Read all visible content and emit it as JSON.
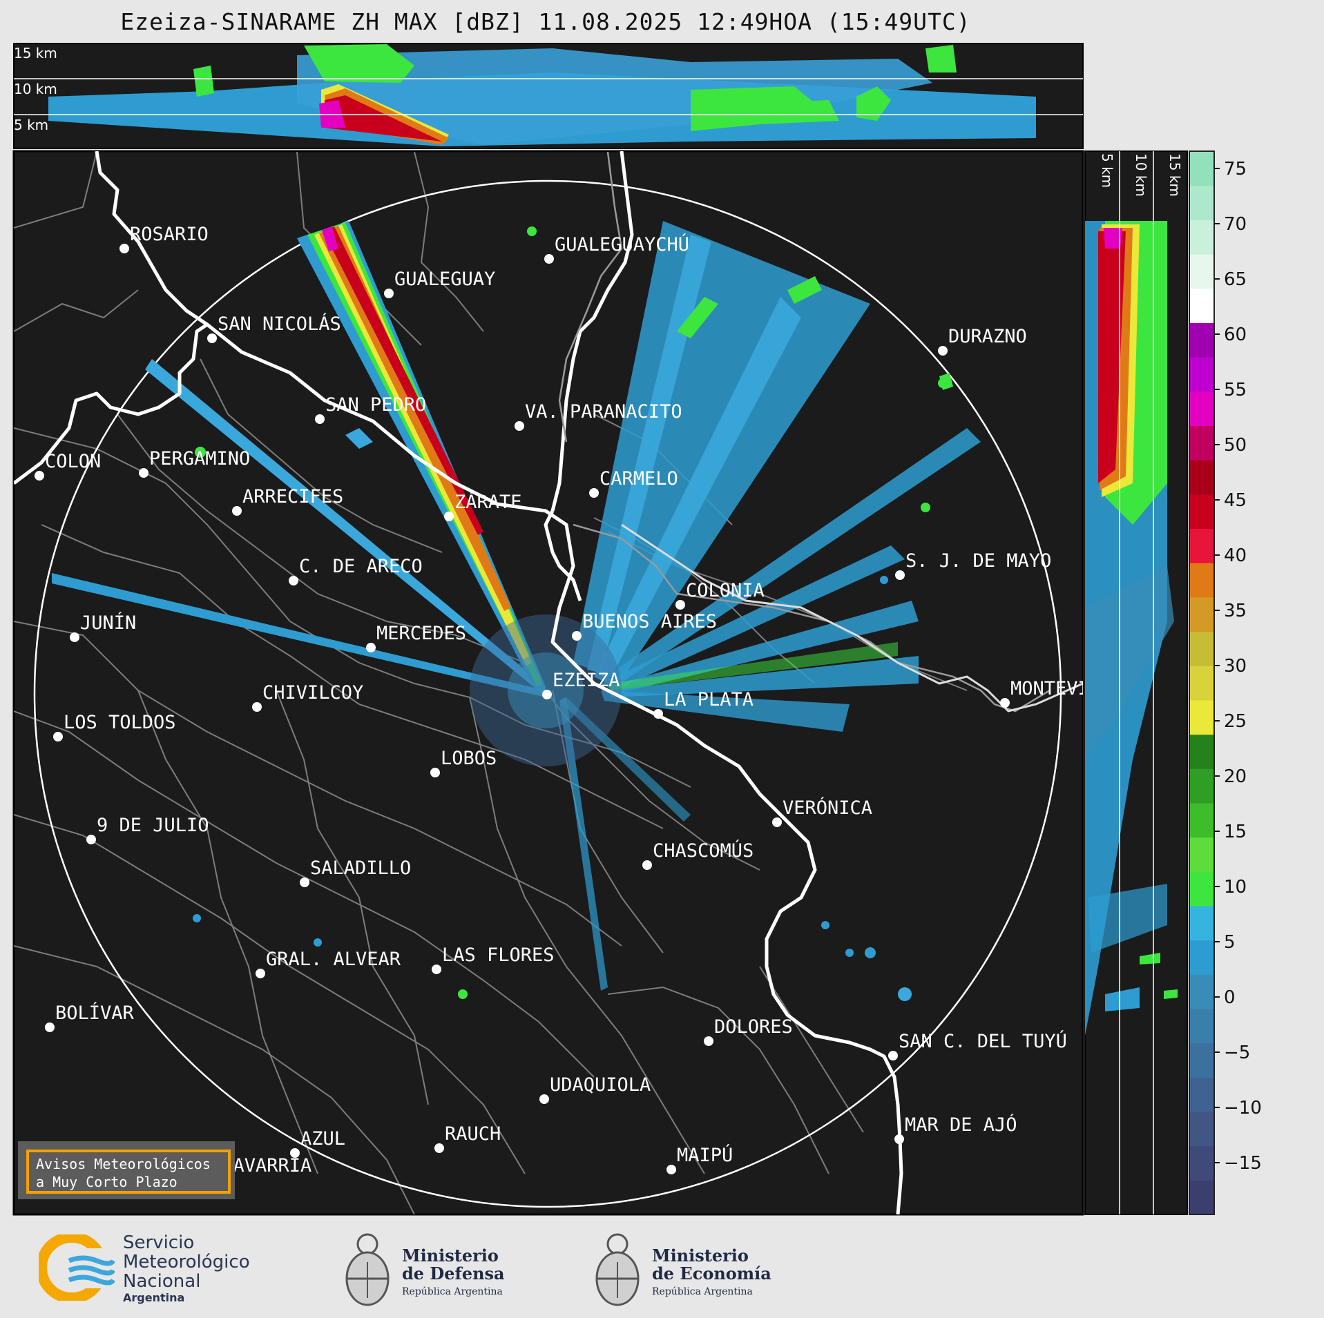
{
  "title": "Ezeiza-SINARAME ZH MAX [dBZ] 11.08.2025 12:49HOA (15:49UTC)",
  "cross_section_top": {
    "altitude_labels": [
      "15 km",
      "10 km",
      "5 km"
    ]
  },
  "cross_section_right": {
    "altitude_labels": [
      "5 km",
      "10 km",
      "15 km"
    ]
  },
  "colorbar": {
    "ticks": [
      "75",
      "70",
      "65",
      "60",
      "55",
      "50",
      "45",
      "40",
      "35",
      "30",
      "25",
      "20",
      "15",
      "10",
      "5",
      "0",
      "−5",
      "−10",
      "−15"
    ],
    "colors": [
      "#3b3f6e",
      "#3f4a7a",
      "#425686",
      "#3e6393",
      "#3b709f",
      "#3a7eab",
      "#3a8cb8",
      "#2d9cd0",
      "#35b4e0",
      "#3de63f",
      "#5ddc3b",
      "#3ebd2a",
      "#2f9e24",
      "#26811d",
      "#ebe83a",
      "#d8d23b",
      "#c6bc35",
      "#d59a25",
      "#e07a17",
      "#e8153a",
      "#c9001b",
      "#a8001a",
      "#c20060",
      "#e300c0",
      "#c000d0",
      "#a000b0",
      "#ffffff",
      "#e6f8ee",
      "#c8f0db",
      "#aee8cc",
      "#93e0bc"
    ]
  },
  "cities": [
    {
      "name": "ROSARIO"
    },
    {
      "name": "GUALEGUAYCHÚ"
    },
    {
      "name": "GUALEGUAY"
    },
    {
      "name": "SAN NICOLÁS"
    },
    {
      "name": "DURAZNO"
    },
    {
      "name": "SAN PEDRO"
    },
    {
      "name": "VA. PARANACITO"
    },
    {
      "name": "COLON"
    },
    {
      "name": "PERGAMINO"
    },
    {
      "name": "CARMELO"
    },
    {
      "name": "ARRECIFES"
    },
    {
      "name": "ZÁRATE"
    },
    {
      "name": "S. J. DE MAYO"
    },
    {
      "name": "C. DE ARECO"
    },
    {
      "name": "COLONIA"
    },
    {
      "name": "JUNÍN"
    },
    {
      "name": "BUENOS AIRES"
    },
    {
      "name": "MERCEDES"
    },
    {
      "name": "EZEIZA"
    },
    {
      "name": "MONTEVIDEO"
    },
    {
      "name": "CHIVILCOY"
    },
    {
      "name": "LA PLATA"
    },
    {
      "name": "LOS TOLDOS"
    },
    {
      "name": "LOBOS"
    },
    {
      "name": "VERÓNICA"
    },
    {
      "name": "9 DE JULIO"
    },
    {
      "name": "CHASCOMÚS"
    },
    {
      "name": "SALADILLO"
    },
    {
      "name": "GRAL. ALVEAR"
    },
    {
      "name": "LAS FLORES"
    },
    {
      "name": "BOLÍVAR"
    },
    {
      "name": "DOLORES"
    },
    {
      "name": "SAN C. DEL TUYÚ"
    },
    {
      "name": "UDAQUIOLA"
    },
    {
      "name": "AZUL"
    },
    {
      "name": "RAUCH"
    },
    {
      "name": "MAR DE AJÓ"
    },
    {
      "name": "OLAVARRÍA"
    },
    {
      "name": "MAIPÚ"
    }
  ],
  "aviso": {
    "line1": "Avisos Meteorológicos",
    "line2": "a Muy Corto Plazo"
  },
  "logos": {
    "smn": {
      "line1": "Servicio",
      "line2": "Meteorológico",
      "line3": "Nacional",
      "line4": "Argentina"
    },
    "defensa": {
      "line1": "Ministerio",
      "line2": "de Defensa",
      "line3": "República Argentina"
    },
    "economia": {
      "line1": "Ministerio",
      "line2": "de Economía",
      "line3": "República Argentina"
    }
  }
}
